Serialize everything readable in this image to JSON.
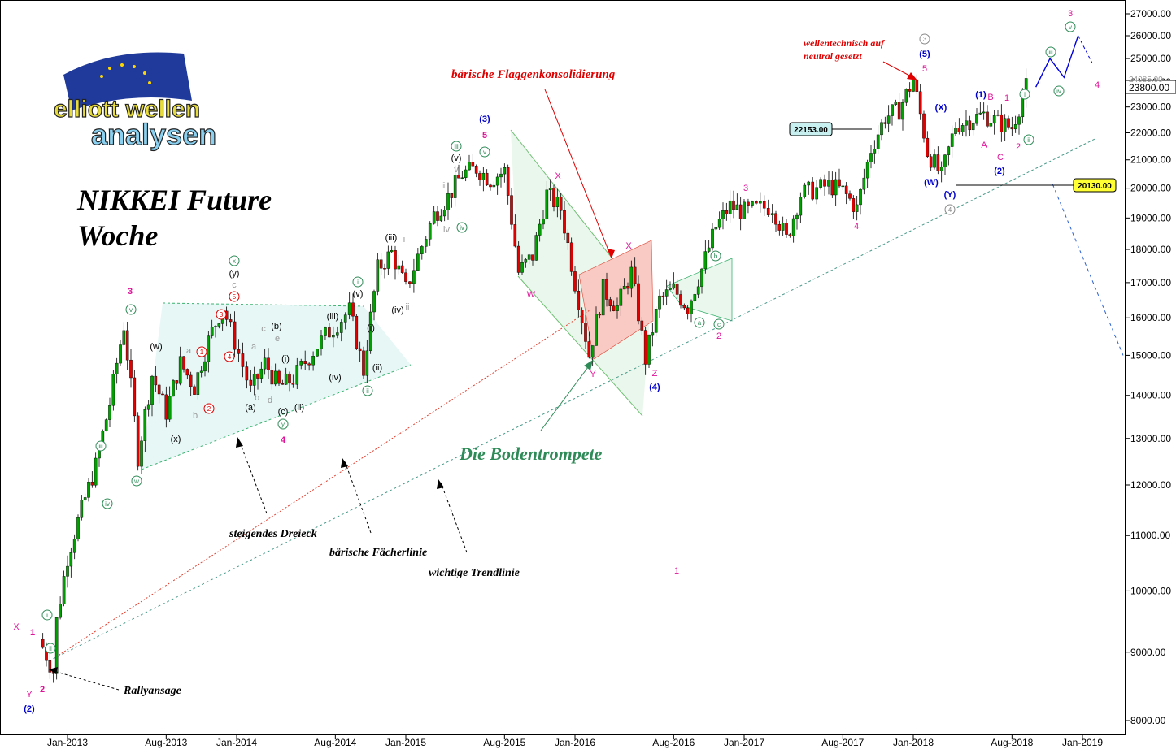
{
  "chart_data": {
    "type": "candlestick",
    "title": "NIKKEI Future",
    "subtitle": "Woche",
    "logo_text": [
      "elliott wellen",
      "analysen"
    ],
    "x_ticks": [
      "Jan-2013",
      "Aug-2013",
      "Jan-2014",
      "Aug-2014",
      "Jan-2015",
      "Aug-2015",
      "Jan-2016",
      "Aug-2016",
      "Jan-2017",
      "Aug-2017",
      "Jan-2018",
      "Aug-2018",
      "Jan-2019"
    ],
    "y_ticks": [
      "27000.00",
      "26000.00",
      "25000.00",
      "24000.00",
      "23000.00",
      "22000.00",
      "21000.00",
      "20000.00",
      "19000.00",
      "18000.00",
      "17000.00",
      "16000.00",
      "15000.00",
      "14000.00",
      "13000.00",
      "12000.00",
      "11000.00",
      "10000.00",
      "9000.00",
      "8000.00"
    ],
    "y_scale": "log",
    "ylim": [
      7800,
      27400
    ],
    "price_labels": {
      "current": "23800.00",
      "current_behind": "24085.00",
      "level_1": "22153.00",
      "level_2": "20130.00"
    },
    "price_path": [
      [
        "2012-11",
        9200
      ],
      [
        "2012-12",
        8700
      ],
      [
        "2012-12",
        9500
      ],
      [
        "2013-01",
        10600
      ],
      [
        "2013-02",
        11500
      ],
      [
        "2013-03",
        12400
      ],
      [
        "2013-04",
        13800
      ],
      [
        "2013-05",
        15800
      ],
      [
        "2013-06",
        12600
      ],
      [
        "2013-07",
        14500
      ],
      [
        "2013-08",
        13600
      ],
      [
        "2013-09",
        14800
      ],
      [
        "2013-10",
        14200
      ],
      [
        "2013-11",
        15400
      ],
      [
        "2013-12",
        16300
      ],
      [
        "2014-02",
        14100
      ],
      [
        "2014-03",
        14800
      ],
      [
        "2014-04",
        14200
      ],
      [
        "2014-05",
        14400
      ],
      [
        "2014-07",
        15400
      ],
      [
        "2014-09",
        16200
      ],
      [
        "2014-10",
        14600
      ],
      [
        "2014-11",
        17400
      ],
      [
        "2014-12",
        17900
      ],
      [
        "2015-01",
        16800
      ],
      [
        "2015-03",
        19100
      ],
      [
        "2015-04",
        19700
      ],
      [
        "2015-05",
        20500
      ],
      [
        "2015-06",
        20700
      ],
      [
        "2015-07",
        20300
      ],
      [
        "2015-08",
        20600
      ],
      [
        "2015-09",
        17300
      ],
      [
        "2015-10",
        17800
      ],
      [
        "2015-11",
        19800
      ],
      [
        "2015-12",
        19300
      ],
      [
        "2016-01",
        17000
      ],
      [
        "2016-02",
        15000
      ],
      [
        "2016-03",
        16800
      ],
      [
        "2016-04",
        16300
      ],
      [
        "2016-05",
        17300
      ],
      [
        "2016-06",
        14900
      ],
      [
        "2016-07",
        16500
      ],
      [
        "2016-08",
        16800
      ],
      [
        "2016-09",
        16300
      ],
      [
        "2016-10",
        17400
      ],
      [
        "2016-11",
        18700
      ],
      [
        "2016-12",
        19400
      ],
      [
        "2017-01",
        19200
      ],
      [
        "2017-03",
        19400
      ],
      [
        "2017-04",
        18300
      ],
      [
        "2017-05",
        19800
      ],
      [
        "2017-07",
        20100
      ],
      [
        "2017-08",
        19900
      ],
      [
        "2017-09",
        19300
      ],
      [
        "2017-10",
        21400
      ],
      [
        "2017-11",
        22600
      ],
      [
        "2017-12",
        22900
      ],
      [
        "2018-01",
        24100
      ],
      [
        "2018-02",
        21300
      ],
      [
        "2018-03",
        20400
      ],
      [
        "2018-04",
        22300
      ],
      [
        "2018-05",
        22500
      ],
      [
        "2018-06",
        22700
      ],
      [
        "2018-07",
        22400
      ],
      [
        "2018-08",
        22200
      ],
      [
        "2018-09",
        23800
      ]
    ],
    "projection": [
      [
        "2018-09",
        23800
      ],
      [
        "2018-10",
        25000
      ],
      [
        "2018-11",
        24200
      ],
      [
        "2018-12",
        26000
      ],
      [
        "2019-01",
        24800
      ]
    ],
    "projection_down": [
      [
        "2018-08",
        20130
      ],
      [
        "2019-02",
        15000
      ]
    ],
    "lines": [
      {
        "name": "bärische Fächerlinie",
        "from": [
          "2012-12",
          8900
        ],
        "to": [
          "2016-02",
          16200
        ]
      },
      {
        "name": "wichtige Trendlinie",
        "from": [
          "2012-12",
          8900
        ],
        "to": [
          "2019-02",
          21800
        ]
      }
    ],
    "annotations": {
      "baerische_flaggenkonsolidierung": "bärische Flaggenkonsolidierung",
      "wellentechnisch": "wellentechnisch auf",
      "neutral_gesetzt": "neutral gesetzt",
      "die_bodentrompete": "Die Bodentrompete",
      "steigendes_dreieck": "steigendes Dreieck",
      "baerische_faecherlinie": "bärische Fächerlinie",
      "wichtige_trendlinie": "wichtige Trendlinie",
      "rallyansage": "Rallyansage"
    },
    "wave_labels": [
      {
        "t": "X",
        "c": "#e0149a",
        "x": 20,
        "y": 775
      },
      {
        "t": "1",
        "c": "#e0149a",
        "x": 40,
        "y": 782,
        "s": 17
      },
      {
        "t": "Y",
        "c": "#e0149a",
        "x": 36,
        "y": 858
      },
      {
        "t": "2",
        "c": "#e0149a",
        "x": 52,
        "y": 852,
        "s": 17
      },
      {
        "t": "(2)",
        "c": "#0000cc",
        "x": 36,
        "y": 876
      },
      {
        "t": "3",
        "c": "#e0149a",
        "x": 160,
        "y": 362,
        "s": 17
      },
      {
        "t": "(w)",
        "c": "#000",
        "x": 192,
        "y": 430
      },
      {
        "t": "(x)",
        "c": "#000",
        "x": 216,
        "y": 544
      },
      {
        "t": "a",
        "c": "#999",
        "x": 232,
        "y": 435
      },
      {
        "t": "b",
        "c": "#999",
        "x": 240,
        "y": 515
      },
      {
        "t": "(a)",
        "c": "#000",
        "x": 308,
        "y": 505
      },
      {
        "t": "(y)",
        "c": "#000",
        "x": 288,
        "y": 340
      },
      {
        "t": "c",
        "c": "#999",
        "x": 288,
        "y": 354
      },
      {
        "t": "a",
        "c": "#999",
        "x": 312,
        "y": 430
      },
      {
        "t": "b",
        "c": "#999",
        "x": 316,
        "y": 493
      },
      {
        "t": "c",
        "c": "#999",
        "x": 324,
        "y": 408
      },
      {
        "t": "d",
        "c": "#999",
        "x": 332,
        "y": 496
      },
      {
        "t": "e",
        "c": "#999",
        "x": 341,
        "y": 420
      },
      {
        "t": "(b)",
        "c": "#000",
        "x": 340,
        "y": 405
      },
      {
        "t": "(i)",
        "c": "#000",
        "x": 351,
        "y": 445
      },
      {
        "t": "(c)",
        "c": "#000",
        "x": 348,
        "y": 510
      },
      {
        "t": "(ii)",
        "c": "#000",
        "x": 368,
        "y": 505
      },
      {
        "t": "4",
        "c": "#e0149a",
        "x": 348,
        "y": 545,
        "s": 17
      },
      {
        "t": "(iii)",
        "c": "#000",
        "x": 409,
        "y": 393
      },
      {
        "t": "(iv)",
        "c": "#000",
        "x": 412,
        "y": 468
      },
      {
        "t": "(v)",
        "c": "#000",
        "x": 440,
        "y": 365
      },
      {
        "t": "(i)",
        "c": "#000",
        "x": 456,
        "y": 407
      },
      {
        "t": "(ii)",
        "c": "#000",
        "x": 464,
        "y": 456
      },
      {
        "t": "(iii)",
        "c": "#000",
        "x": 481,
        "y": 296
      },
      {
        "t": "i",
        "c": "#999",
        "x": 497,
        "y": 298
      },
      {
        "t": "(iv)",
        "c": "#000",
        "x": 489,
        "y": 385
      },
      {
        "t": "ii",
        "c": "#999",
        "x": 501,
        "y": 381
      },
      {
        "t": "iii",
        "c": "#999",
        "x": 546,
        "y": 232
      },
      {
        "t": "iv",
        "c": "#999",
        "x": 549,
        "y": 286
      },
      {
        "t": "v",
        "c": "#999",
        "x": 561,
        "y": 212
      },
      {
        "t": "(v)",
        "c": "#000",
        "x": 561,
        "y": 198
      },
      {
        "t": "(3)",
        "c": "#0000cc",
        "x": 596,
        "y": 150
      },
      {
        "t": "5",
        "c": "#e0149a",
        "x": 596,
        "y": 170,
        "s": 17
      },
      {
        "t": "X",
        "c": "#e0149a",
        "x": 686,
        "y": 220
      },
      {
        "t": "W",
        "c": "#e0149a",
        "x": 653,
        "y": 366
      },
      {
        "t": "Y",
        "c": "#e0149a",
        "x": 729,
        "y": 464
      },
      {
        "t": "X",
        "c": "#e0149a",
        "x": 773,
        "y": 306
      },
      {
        "t": "Z",
        "c": "#e0149a",
        "x": 805,
        "y": 463
      },
      {
        "t": "(4)",
        "c": "#0000cc",
        "x": 805,
        "y": 480
      },
      {
        "t": "1",
        "c": "#e0149a",
        "x": 832,
        "y": 706
      },
      {
        "t": "2",
        "c": "#e0149a",
        "x": 884,
        "y": 417
      },
      {
        "t": "3",
        "c": "#e0149a",
        "x": 917,
        "y": 235
      },
      {
        "t": "4",
        "c": "#e0149a",
        "x": 1053,
        "y": 282
      },
      {
        "t": "5",
        "c": "#e0149a",
        "x": 1137,
        "y": 88
      },
      {
        "t": "(5)",
        "c": "#0000cc",
        "x": 1137,
        "y": 70
      },
      {
        "t": "(X)",
        "c": "#0000cc",
        "x": 1157,
        "y": 136
      },
      {
        "t": "(W)",
        "c": "#0000cc",
        "x": 1145,
        "y": 228
      },
      {
        "t": "(Y)",
        "c": "#0000cc",
        "x": 1168,
        "y": 243
      },
      {
        "t": "(1)",
        "c": "#0000cc",
        "x": 1206,
        "y": 120
      },
      {
        "t": "B",
        "c": "#e0149a",
        "x": 1218,
        "y": 123
      },
      {
        "t": "1",
        "c": "#e0149a",
        "x": 1238,
        "y": 124
      },
      {
        "t": "A",
        "c": "#e0149a",
        "x": 1210,
        "y": 182
      },
      {
        "t": "C",
        "c": "#e0149a",
        "x": 1230,
        "y": 197
      },
      {
        "t": "(2)",
        "c": "#0000cc",
        "x": 1229,
        "y": 214
      },
      {
        "t": "2",
        "c": "#e0149a",
        "x": 1252,
        "y": 184
      },
      {
        "t": "3",
        "c": "#e0149a",
        "x": 1316,
        "y": 20
      },
      {
        "t": "4",
        "c": "#e0149a",
        "x": 1349,
        "y": 108
      }
    ],
    "circle_labels": [
      {
        "t": "i",
        "c": "#2e8b57",
        "x": 58,
        "y": 757
      },
      {
        "t": "ii",
        "c": "#2e8b57",
        "x": 62,
        "y": 798
      },
      {
        "t": "iii",
        "c": "#2e8b57",
        "x": 124,
        "y": 549
      },
      {
        "t": "iv",
        "c": "#2e8b57",
        "x": 132,
        "y": 620
      },
      {
        "t": "v",
        "c": "#2e8b57",
        "x": 161,
        "y": 381
      },
      {
        "t": "w",
        "c": "#2e8b57",
        "x": 168,
        "y": 592
      },
      {
        "t": "1",
        "c": "#e00000",
        "x": 248,
        "y": 433
      },
      {
        "t": "2",
        "c": "#e00000",
        "x": 257,
        "y": 503
      },
      {
        "t": "3",
        "c": "#e00000",
        "x": 272,
        "y": 387
      },
      {
        "t": "4",
        "c": "#e00000",
        "x": 282,
        "y": 439
      },
      {
        "t": "5",
        "c": "#e00000",
        "x": 288,
        "y": 365
      },
      {
        "t": "x",
        "c": "#2e8b57",
        "x": 288,
        "y": 321
      },
      {
        "t": "y",
        "c": "#2e8b57",
        "x": 348,
        "y": 522
      },
      {
        "t": "i",
        "c": "#2e8b57",
        "x": 440,
        "y": 347
      },
      {
        "t": "ii",
        "c": "#2e8b57",
        "x": 452,
        "y": 481
      },
      {
        "t": "iii",
        "c": "#2e8b57",
        "x": 561,
        "y": 180
      },
      {
        "t": "iv",
        "c": "#2e8b57",
        "x": 568,
        "y": 280
      },
      {
        "t": "v",
        "c": "#2e8b57",
        "x": 596,
        "y": 187
      },
      {
        "t": "a",
        "c": "#2e8b57",
        "x": 860,
        "y": 397
      },
      {
        "t": "b",
        "c": "#2e8b57",
        "x": 880,
        "y": 315
      },
      {
        "t": "c",
        "c": "#2e8b57",
        "x": 884,
        "y": 399
      },
      {
        "t": "3",
        "c": "#888888",
        "x": 1137,
        "y": 48
      },
      {
        "t": "4",
        "c": "#888888",
        "x": 1168,
        "y": 258
      },
      {
        "t": "i",
        "c": "#2e8b57",
        "x": 1260,
        "y": 116
      },
      {
        "t": "ii",
        "c": "#2e8b57",
        "x": 1265,
        "y": 172
      },
      {
        "t": "iii",
        "c": "#2e8b57",
        "x": 1292,
        "y": 64
      },
      {
        "t": "iv",
        "c": "#2e8b57",
        "x": 1302,
        "y": 112
      },
      {
        "t": "v",
        "c": "#2e8b57",
        "x": 1316,
        "y": 33
      }
    ]
  }
}
